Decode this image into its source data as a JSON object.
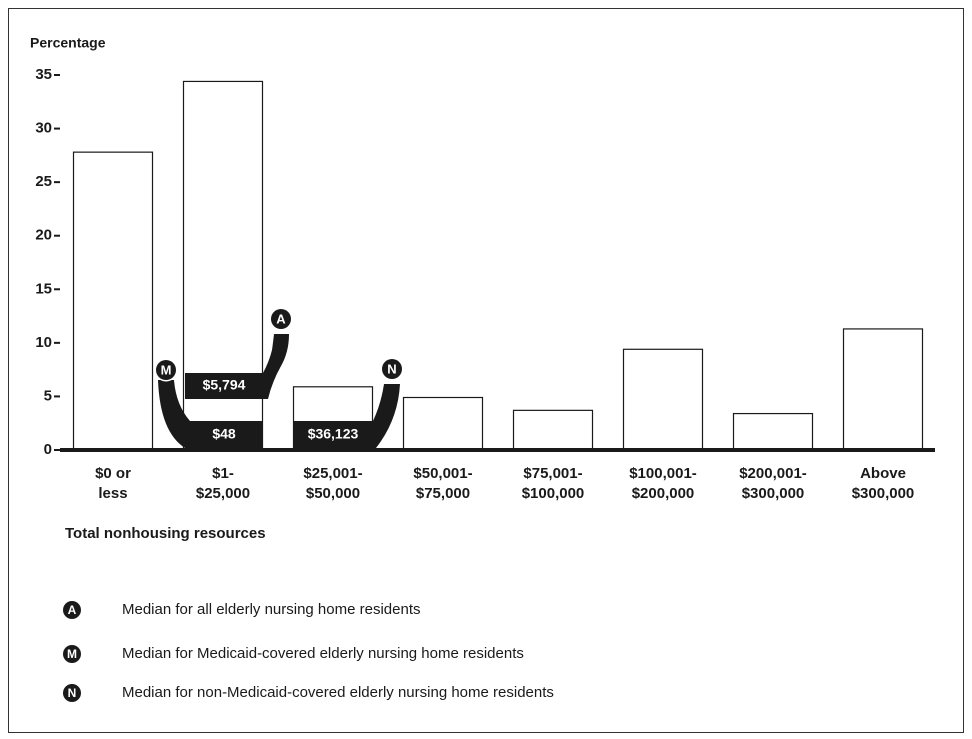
{
  "chart_data": {
    "type": "bar",
    "y_axis_label": "Percentage",
    "x_axis_label": "Total nonhousing resources",
    "categories": [
      "$0 or\nless",
      "$1-\n$25,000",
      "$25,001-\n$50,000",
      "$50,001-\n$75,000",
      "$75,001-\n$100,000",
      "$100,001-\n$200,000",
      "$200,001-\n$300,000",
      "Above\n$300,000"
    ],
    "values": [
      27.8,
      34.4,
      5.9,
      4.9,
      3.7,
      9.4,
      3.4,
      11.3
    ],
    "color": "#ffffff",
    "ylim": [
      0,
      35
    ],
    "yticks": [
      0,
      5,
      10,
      15,
      20,
      25,
      30,
      35
    ],
    "annotations": [
      {
        "marker": "A",
        "label": "$5,794"
      },
      {
        "marker": "M",
        "label": "$48"
      },
      {
        "marker": "N",
        "label": "$36,123"
      }
    ],
    "legend": [
      {
        "marker": "A",
        "text": "Median for all elderly nursing home residents"
      },
      {
        "marker": "M",
        "text": "Median for Medicaid-covered elderly nursing home residents"
      },
      {
        "marker": "N",
        "text": "Median for non-Medicaid-covered elderly nursing home residents"
      }
    ]
  }
}
